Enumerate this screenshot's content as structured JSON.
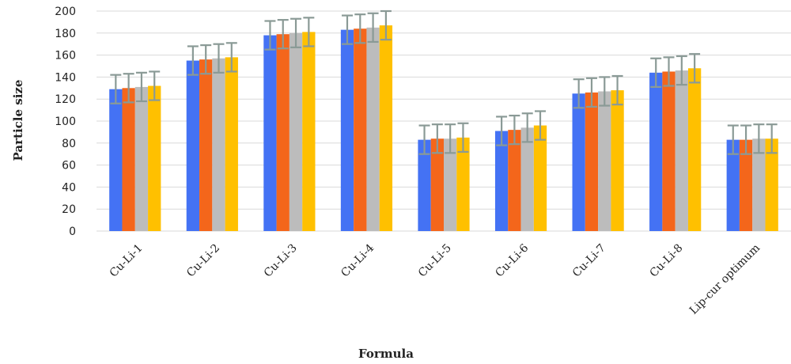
{
  "chart_data": {
    "type": "bar",
    "title": "",
    "xlabel": "Formula",
    "ylabel": "Particle size",
    "ylim": [
      0,
      200
    ],
    "yticks": [
      0,
      20,
      40,
      60,
      80,
      100,
      120,
      140,
      160,
      180,
      200
    ],
    "grid": true,
    "legend": "none",
    "error_bars": true,
    "categories": [
      "Cu-Li-1",
      "Cu-Li-2",
      "Cu-Li-3",
      "Cu-Li-4",
      "Cu-Li-5",
      "Cu-Li-6",
      "Cu-Li-7",
      "Cu-Li-8",
      "Lip-cur optimum"
    ],
    "series": [
      {
        "color": "#4472f4",
        "values": [
          129,
          155,
          178,
          183,
          83,
          91,
          125,
          144,
          83
        ],
        "errors": [
          13,
          13,
          13,
          13,
          13,
          13,
          13,
          13,
          13
        ]
      },
      {
        "color": "#f4661b",
        "values": [
          130,
          156,
          179,
          184,
          84,
          92,
          126,
          145,
          83
        ],
        "errors": [
          13,
          13,
          13,
          13,
          13,
          13,
          13,
          13,
          13
        ]
      },
      {
        "color": "#bcbcbc",
        "values": [
          131,
          157,
          180,
          185,
          84,
          94,
          127,
          146,
          84
        ],
        "errors": [
          13,
          13,
          13,
          13,
          13,
          13,
          13,
          13,
          13
        ]
      },
      {
        "color": "#ffc000",
        "values": [
          132,
          158,
          181,
          187,
          85,
          96,
          128,
          148,
          84
        ],
        "errors": [
          13,
          13,
          13,
          13,
          13,
          13,
          13,
          13,
          13
        ]
      }
    ]
  }
}
